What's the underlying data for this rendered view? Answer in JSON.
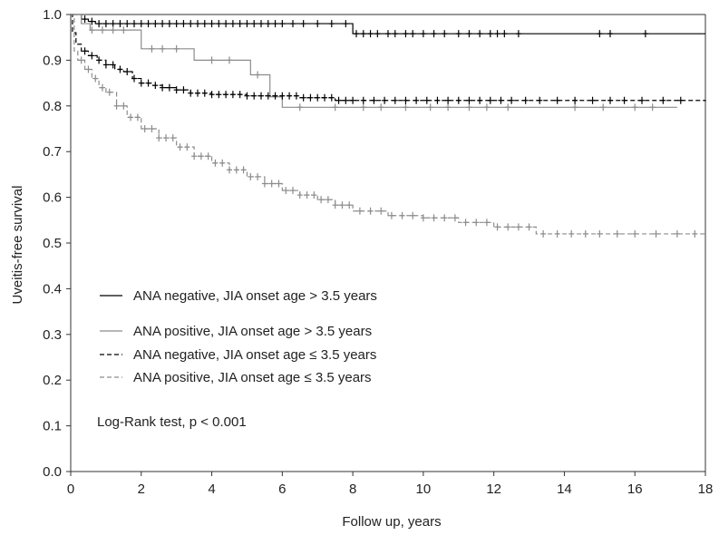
{
  "chart_data": {
    "type": "line",
    "xlabel": "Follow up, years",
    "ylabel": "Uveitis-free survival",
    "xlim": [
      0,
      18
    ],
    "ylim": [
      0,
      1
    ],
    "xticks": [
      0,
      2,
      4,
      6,
      8,
      10,
      12,
      14,
      16,
      18
    ],
    "yticks": [
      0.0,
      0.1,
      0.2,
      0.3,
      0.4,
      0.5,
      0.6,
      0.7,
      0.8,
      0.9,
      1.0
    ],
    "xtick_labels": [
      "0",
      "2",
      "4",
      "6",
      "8",
      "10",
      "12",
      "14",
      "16",
      "18"
    ],
    "ytick_labels": [
      "0.0",
      "0.1",
      "0.2",
      "0.3",
      "0.4",
      "0.5",
      "0.6",
      "0.7",
      "0.8",
      "0.9",
      "1.0"
    ],
    "grid": false,
    "legend_position": "lower-left",
    "annotation": "Log-Rank test, p < 0.001",
    "series": [
      {
        "name": "ANA negative, JIA onset age > 3.5 years",
        "color": "#000000",
        "dash": "solid",
        "points": [
          [
            0,
            1.0
          ],
          [
            0.3,
            0.99
          ],
          [
            0.5,
            0.985
          ],
          [
            0.7,
            0.98
          ],
          [
            7.95,
            0.98
          ],
          [
            8.0,
            0.958
          ],
          [
            18.0,
            0.958
          ]
        ],
        "censor_x": [
          0.4,
          0.6,
          0.8,
          1.0,
          1.2,
          1.4,
          1.6,
          1.8,
          2.0,
          2.2,
          2.4,
          2.6,
          2.8,
          3.0,
          3.2,
          3.4,
          3.6,
          3.8,
          4.0,
          4.2,
          4.4,
          4.6,
          4.8,
          5.0,
          5.2,
          5.4,
          5.6,
          5.8,
          6.0,
          6.3,
          6.6,
          7.0,
          7.4,
          7.8,
          8.1,
          8.3,
          8.5,
          8.7,
          9.0,
          9.2,
          9.5,
          9.7,
          10.0,
          10.3,
          10.6,
          11.0,
          11.3,
          11.6,
          11.9,
          12.1,
          12.3,
          12.7,
          15.0,
          15.3,
          16.3
        ]
      },
      {
        "name": "ANA positive, JIA onset age > 3.5 years",
        "color": "#8c8c8c",
        "dash": "solid",
        "points": [
          [
            0,
            1.0
          ],
          [
            0.3,
            0.98
          ],
          [
            0.55,
            0.966
          ],
          [
            1.75,
            0.966
          ],
          [
            2.0,
            0.925
          ],
          [
            3.4,
            0.925
          ],
          [
            3.5,
            0.9
          ],
          [
            5.0,
            0.9
          ],
          [
            5.1,
            0.868
          ],
          [
            5.55,
            0.868
          ],
          [
            5.65,
            0.82
          ],
          [
            5.9,
            0.82
          ],
          [
            6.0,
            0.797
          ],
          [
            17.2,
            0.797
          ]
        ],
        "censor_x": [
          0.6,
          0.9,
          1.2,
          1.5,
          2.3,
          2.6,
          3.0,
          4.0,
          4.5,
          5.3,
          6.5,
          7.5,
          8.3,
          8.8,
          9.5,
          10.2,
          10.7,
          11.3,
          11.8,
          12.4,
          14.3,
          15.1,
          16.0,
          16.5
        ]
      },
      {
        "name": "ANA negative, JIA onset age ≤ 3.5 years",
        "color": "#000000",
        "dash": "5,3",
        "points": [
          [
            0,
            1.0
          ],
          [
            0.05,
            0.96
          ],
          [
            0.15,
            0.935
          ],
          [
            0.3,
            0.92
          ],
          [
            0.5,
            0.91
          ],
          [
            0.75,
            0.9
          ],
          [
            1.0,
            0.89
          ],
          [
            1.25,
            0.88
          ],
          [
            1.5,
            0.875
          ],
          [
            1.75,
            0.86
          ],
          [
            2.0,
            0.85
          ],
          [
            2.3,
            0.845
          ],
          [
            2.6,
            0.84
          ],
          [
            3.0,
            0.835
          ],
          [
            3.4,
            0.828
          ],
          [
            4.0,
            0.825
          ],
          [
            5.0,
            0.822
          ],
          [
            6.5,
            0.818
          ],
          [
            7.5,
            0.812
          ],
          [
            18.0,
            0.81
          ]
        ],
        "censor_x": [
          0.4,
          0.6,
          0.8,
          1.0,
          1.2,
          1.4,
          1.6,
          1.8,
          2.0,
          2.2,
          2.4,
          2.6,
          2.8,
          3.0,
          3.2,
          3.4,
          3.6,
          3.8,
          4.0,
          4.2,
          4.4,
          4.6,
          4.8,
          5.0,
          5.2,
          5.4,
          5.6,
          5.8,
          6.0,
          6.2,
          6.4,
          6.6,
          6.8,
          7.0,
          7.2,
          7.4,
          7.6,
          7.8,
          8.0,
          8.3,
          8.6,
          8.9,
          9.2,
          9.5,
          9.8,
          10.1,
          10.4,
          10.7,
          11.0,
          11.3,
          11.6,
          11.9,
          12.2,
          12.5,
          12.9,
          13.3,
          13.8,
          14.3,
          14.8,
          15.3,
          15.7,
          16.2,
          16.8,
          17.3
        ]
      },
      {
        "name": "ANA positive, JIA onset age ≤ 3.5 years",
        "color": "#8c8c8c",
        "dash": "5,3",
        "points": [
          [
            0,
            1.0
          ],
          [
            0.1,
            0.92
          ],
          [
            0.2,
            0.9
          ],
          [
            0.4,
            0.88
          ],
          [
            0.6,
            0.86
          ],
          [
            0.8,
            0.84
          ],
          [
            1.0,
            0.83
          ],
          [
            1.3,
            0.8
          ],
          [
            1.6,
            0.775
          ],
          [
            2.0,
            0.75
          ],
          [
            2.5,
            0.73
          ],
          [
            3.0,
            0.71
          ],
          [
            3.5,
            0.69
          ],
          [
            4.0,
            0.675
          ],
          [
            4.5,
            0.66
          ],
          [
            5.0,
            0.645
          ],
          [
            5.5,
            0.63
          ],
          [
            6.0,
            0.615
          ],
          [
            6.5,
            0.605
          ],
          [
            7.0,
            0.595
          ],
          [
            7.5,
            0.583
          ],
          [
            8.0,
            0.57
          ],
          [
            9.0,
            0.56
          ],
          [
            10.0,
            0.555
          ],
          [
            11.0,
            0.545
          ],
          [
            12.0,
            0.535
          ],
          [
            12.8,
            0.535
          ],
          [
            13.2,
            0.52
          ],
          [
            18.0,
            0.52
          ]
        ],
        "censor_x": [
          0.3,
          0.5,
          0.7,
          0.9,
          1.1,
          1.3,
          1.5,
          1.7,
          1.9,
          2.1,
          2.3,
          2.5,
          2.7,
          2.9,
          3.1,
          3.3,
          3.5,
          3.7,
          3.9,
          4.1,
          4.3,
          4.5,
          4.7,
          4.9,
          5.1,
          5.3,
          5.5,
          5.7,
          5.9,
          6.1,
          6.3,
          6.5,
          6.7,
          6.9,
          7.1,
          7.3,
          7.5,
          7.7,
          7.9,
          8.2,
          8.5,
          8.8,
          9.1,
          9.4,
          9.7,
          10.0,
          10.3,
          10.6,
          10.9,
          11.2,
          11.5,
          11.8,
          12.1,
          12.4,
          12.7,
          13.0,
          13.4,
          13.8,
          14.2,
          14.6,
          15.0,
          15.5,
          16.0,
          16.6,
          17.2,
          17.7
        ]
      }
    ]
  }
}
